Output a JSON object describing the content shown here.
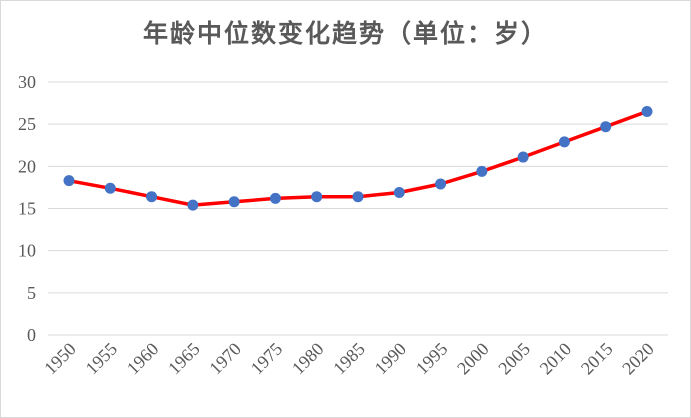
{
  "chart_data": {
    "type": "line",
    "title": "年龄中位数变化趋势（单位：岁）",
    "xlabel": "",
    "ylabel": "",
    "x": [
      1950,
      1955,
      1960,
      1965,
      1970,
      1975,
      1980,
      1985,
      1990,
      1995,
      2000,
      2005,
      2010,
      2015,
      2020
    ],
    "series": [
      {
        "values": [
          18.3,
          17.4,
          16.4,
          15.4,
          15.8,
          16.2,
          16.4,
          16.4,
          16.9,
          17.9,
          19.4,
          21.1,
          22.9,
          24.7,
          26.5
        ],
        "line_color": "#ff0000",
        "marker_color": "#4472c4"
      }
    ],
    "ylim": [
      0,
      30
    ],
    "yticks": [
      "0",
      "5",
      "10",
      "15",
      "20",
      "25",
      "30"
    ],
    "xticks": [
      "1950",
      "1955",
      "1960",
      "1965",
      "1970",
      "1975",
      "1980",
      "1985",
      "1990",
      "1995",
      "2000",
      "2005",
      "2010",
      "2015",
      "2020"
    ],
    "grid": true,
    "legend": "none",
    "gridline_color": "#d9d9d9",
    "text_color": "#595959"
  }
}
